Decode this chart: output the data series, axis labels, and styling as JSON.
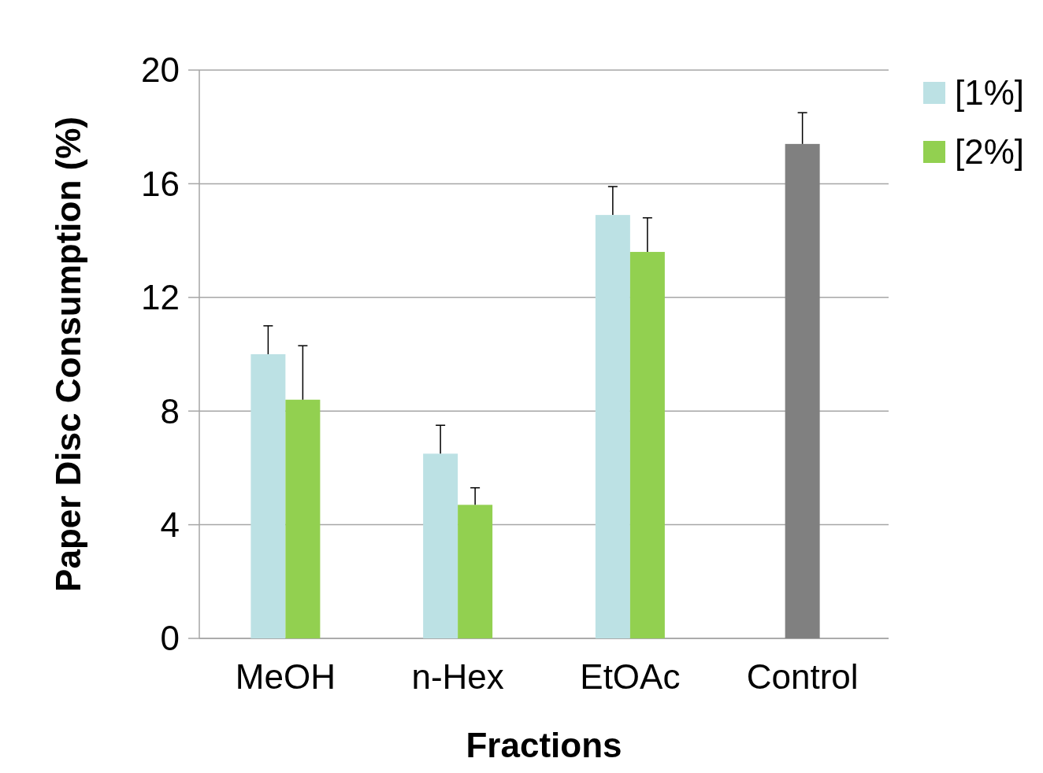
{
  "chart_data": {
    "type": "bar",
    "xlabel": "Fractions",
    "ylabel": "Paper Disc Consumption (%)",
    "categories": [
      "MeOH",
      "n-Hex",
      "EtOAc",
      "Control"
    ],
    "series": [
      {
        "name": "[1%]",
        "color": "#bce1e4",
        "values": [
          10.0,
          6.5,
          14.9,
          null
        ],
        "errors": [
          [
            10.0,
            11.0
          ],
          [
            6.5,
            7.5
          ],
          [
            14.9,
            15.9
          ],
          null
        ]
      },
      {
        "name": "[2%]",
        "color": "#92d050",
        "values": [
          8.4,
          4.7,
          13.6,
          null
        ],
        "errors": [
          [
            8.4,
            10.3
          ],
          [
            4.7,
            5.3
          ],
          [
            13.6,
            14.8
          ],
          null
        ]
      },
      {
        "color": "#808080",
        "values": [
          null,
          null,
          null,
          17.4
        ],
        "errors": [
          null,
          null,
          null,
          [
            17.4,
            18.5
          ]
        ]
      }
    ],
    "ylim": [
      0,
      20
    ],
    "yticks": [
      0,
      4,
      8,
      12,
      16,
      20
    ],
    "grid": "y",
    "legend": "top right"
  }
}
